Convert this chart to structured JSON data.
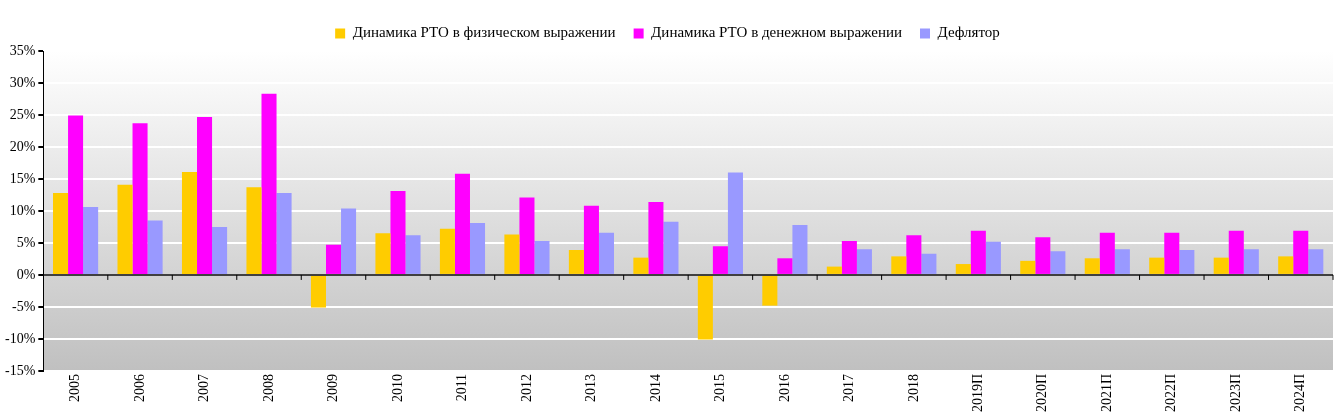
{
  "chart_data": {
    "type": "bar",
    "categories": [
      "2005",
      "2006",
      "2007",
      "2008",
      "2009",
      "2010",
      "2011",
      "2012",
      "2013",
      "2014",
      "2015",
      "2016",
      "2017",
      "2018",
      "2019П",
      "2020П",
      "2021П",
      "2022П",
      "2023П",
      "2024П"
    ],
    "series": [
      {
        "name": "Динамика РТО в физическом выражении",
        "color": "#ffcc00",
        "values": [
          12.8,
          14.1,
          16.1,
          13.7,
          -5.1,
          6.5,
          7.2,
          6.3,
          3.9,
          2.7,
          -10.1,
          -4.8,
          1.3,
          2.9,
          1.7,
          2.2,
          2.6,
          2.7,
          2.7,
          2.9
        ]
      },
      {
        "name": "Динамика РТО в денежном выражении",
        "color": "#ff00ff",
        "values": [
          24.9,
          23.7,
          24.7,
          28.3,
          4.7,
          13.1,
          15.8,
          12.1,
          10.8,
          11.4,
          4.5,
          2.6,
          5.3,
          6.2,
          6.9,
          5.9,
          6.6,
          6.6,
          6.9,
          6.9
        ]
      },
      {
        "name": "Дефлятор",
        "color": "#9999ff",
        "values": [
          10.6,
          8.5,
          7.5,
          12.8,
          10.4,
          6.2,
          8.1,
          5.3,
          6.6,
          8.3,
          16.0,
          7.8,
          4.0,
          3.3,
          5.2,
          3.7,
          4.0,
          3.9,
          4.0,
          4.0
        ]
      }
    ],
    "ylim": [
      -15,
      35
    ],
    "yticks": [
      {
        "value": -15,
        "label": "-15%"
      },
      {
        "value": -10,
        "label": "-10%"
      },
      {
        "value": -5,
        "label": "-5%"
      },
      {
        "value": 0,
        "label": "0%"
      },
      {
        "value": 5,
        "label": "5%"
      },
      {
        "value": 10,
        "label": "10%"
      },
      {
        "value": 15,
        "label": "15%"
      },
      {
        "value": 20,
        "label": "20%"
      },
      {
        "value": 25,
        "label": "25%"
      },
      {
        "value": 30,
        "label": "30%"
      },
      {
        "value": 35,
        "label": "35%"
      }
    ],
    "grid": "y",
    "legend": "top"
  }
}
